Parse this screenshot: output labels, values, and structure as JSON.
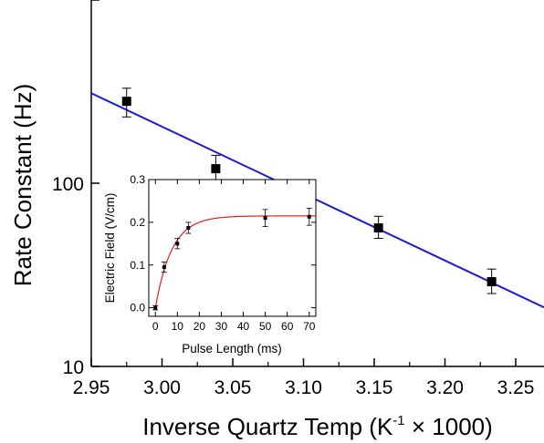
{
  "chart_data": [
    {
      "type": "scatter",
      "title": "",
      "xlabel_main": "Inverse Quartz Temp (K",
      "xlabel_sup": "-1",
      "xlabel_tail": " × 1000)",
      "ylabel": "Rate Constant (Hz)",
      "xlim": [
        2.95,
        3.27
      ],
      "ylim": [
        10,
        1000
      ],
      "yscale": "log",
      "grid": false,
      "x_ticks": [
        2.95,
        3.0,
        3.05,
        3.1,
        3.15,
        3.2,
        3.25
      ],
      "x_tick_labels": [
        "2.95",
        "3.00",
        "3.05",
        "3.10",
        "3.15",
        "3.20",
        "3.25"
      ],
      "y_ticks": [
        10,
        100
      ],
      "y_tick_labels": [
        "10",
        "100"
      ],
      "series": [
        {
          "marker": "square",
          "color": "#000000",
          "points": [
            {
              "x": 2.975,
              "y": 280,
              "err_low": 230,
              "err_high": 330
            },
            {
              "x": 3.038,
              "y": 120,
              "err_low": 100,
              "err_high": 142
            },
            {
              "x": 3.153,
              "y": 57,
              "err_low": 50,
              "err_high": 66
            },
            {
              "x": 3.233,
              "y": 29,
              "err_low": 25,
              "err_high": 34
            }
          ]
        }
      ],
      "fit_line": {
        "color": "#1a1adb",
        "x": [
          2.95,
          3.27
        ],
        "y": [
          310,
          21
        ]
      }
    },
    {
      "type": "scatter",
      "title": "",
      "xlabel": "Pulse Length (ms)",
      "ylabel": "Electric Field (V/cm)",
      "xlim": [
        -3,
        73
      ],
      "ylim": [
        -0.02,
        0.3
      ],
      "grid": false,
      "x_ticks": [
        0,
        10,
        20,
        30,
        40,
        50,
        60,
        70
      ],
      "x_tick_labels": [
        "0",
        "10",
        "20",
        "30",
        "40",
        "50",
        "60",
        "70"
      ],
      "y_ticks": [
        0.0,
        0.1,
        0.2,
        0.3
      ],
      "y_tick_labels": [
        "0.0",
        "0.1",
        "0.2",
        "0.3"
      ],
      "series": [
        {
          "marker": "square-small",
          "color": "#000000",
          "points": [
            {
              "x": 0,
              "y": 0.0,
              "err": 0.005
            },
            {
              "x": 4,
              "y": 0.095,
              "err": 0.012
            },
            {
              "x": 10,
              "y": 0.15,
              "err": 0.012
            },
            {
              "x": 15,
              "y": 0.187,
              "err": 0.013
            },
            {
              "x": 50,
              "y": 0.21,
              "err": 0.02
            },
            {
              "x": 70,
              "y": 0.213,
              "err": 0.02
            }
          ]
        }
      ],
      "fit_curve": {
        "color": "#e02020",
        "model": "saturating-exponential",
        "amplitude": 0.215,
        "tau_ms": 7.5,
        "x_range": [
          0,
          73
        ]
      }
    }
  ]
}
